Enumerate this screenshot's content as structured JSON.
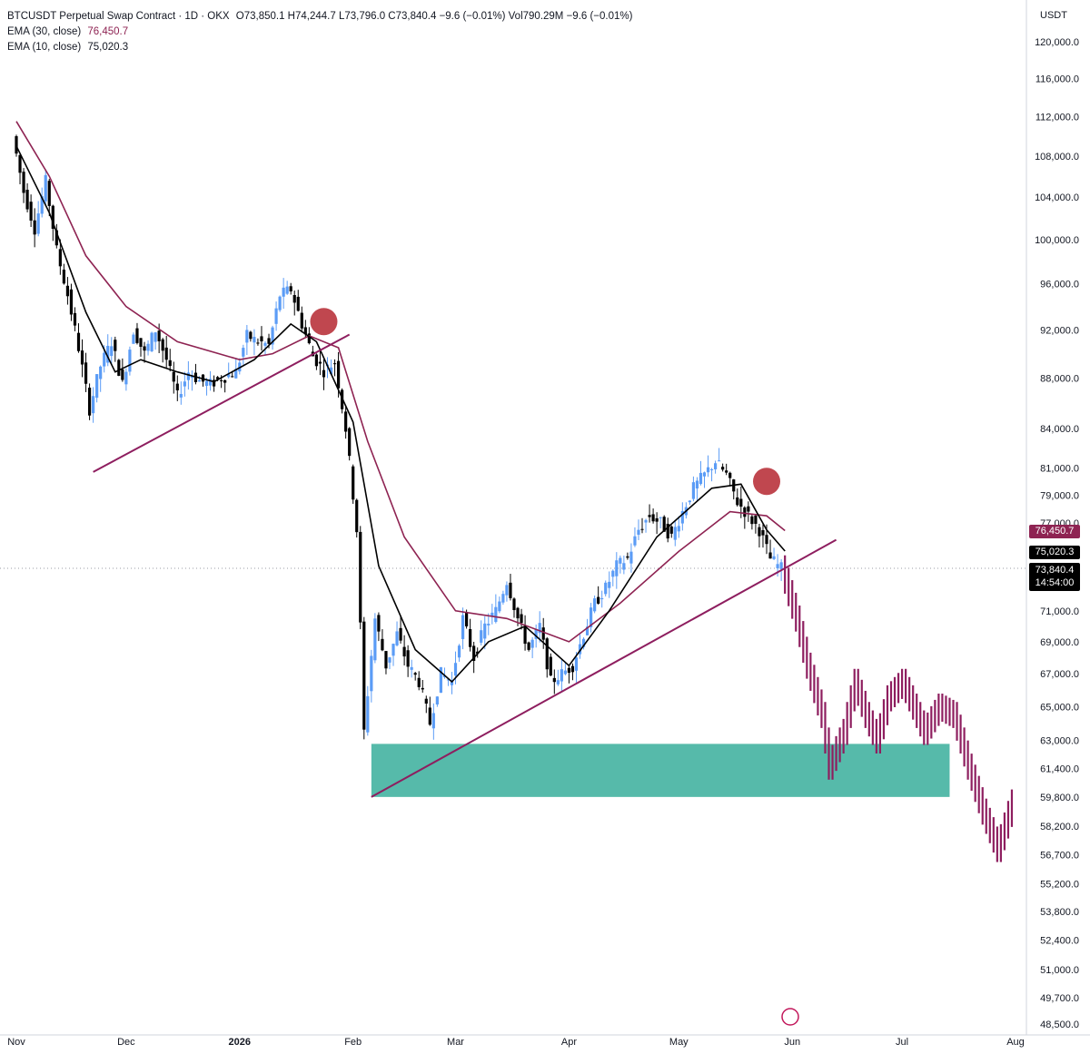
{
  "header": {
    "symbol": "BTCUSDT Perpetual Swap Contract · 1D · OKX",
    "ohlc": "O73,850.1  H74,244.7  L73,796.0  C73,840.4  −9.6 (−0.01%)  Vol790.29M  −9.6 (−0.01%)",
    "ema30_label": "EMA (30, close)",
    "ema30_value": "76,450.7",
    "ema10_label": "EMA (10, close)",
    "ema10_value": "75,020.3",
    "currency": "USDT"
  },
  "tags": {
    "ema30": "76,450.7",
    "ema10": "75,020.3",
    "last": "73,840.4",
    "countdown": "14:54:00"
  },
  "colors": {
    "up": "#5b9cf6",
    "down": "#000000",
    "ema30": "#8e2352",
    "ema10": "#000000",
    "projection": "#8e1e5f",
    "zone": "#4db6a5",
    "trendline": "#8e1e5f",
    "marker": "#c0474f"
  },
  "chart_data": {
    "type": "candlestick",
    "price_axis_ticks": [
      "120,000.0",
      "116,000.0",
      "112,000.0",
      "108,000.0",
      "104,000.0",
      "100,000.0",
      "96,000.0",
      "92,000.0",
      "88,000.0",
      "84,000.0",
      "81,000.0",
      "79,000.0",
      "77,000.0",
      "71,000.0",
      "69,000.0",
      "67,000.0",
      "65,000.0",
      "63,000.0",
      "61,400.0",
      "59,800.0",
      "58,200.0",
      "56,700.0",
      "55,200.0",
      "53,800.0",
      "52,400.0",
      "51,000.0",
      "49,700.0",
      "48,500.0"
    ],
    "time_axis_ticks": [
      "Nov",
      "Dec",
      "2026",
      "Feb",
      "Mar",
      "Apr",
      "May",
      "Jun",
      "Jul",
      "Aug"
    ],
    "date_range": [
      "2025-11-01",
      "2026-08-01"
    ],
    "price_range": [
      48500,
      120000
    ],
    "scale": "log",
    "candles_close_approx": [
      [
        "2025-11-01",
        110000
      ],
      [
        "2025-11-04",
        104500
      ],
      [
        "2025-11-07",
        101000
      ],
      [
        "2025-11-10",
        105500
      ],
      [
        "2025-11-13",
        99000
      ],
      [
        "2025-11-16",
        95000
      ],
      [
        "2025-11-19",
        90500
      ],
      [
        "2025-11-22",
        85500
      ],
      [
        "2025-11-25",
        89000
      ],
      [
        "2025-11-28",
        91000
      ],
      [
        "2025-12-01",
        87500
      ],
      [
        "2025-12-04",
        92000
      ],
      [
        "2025-12-07",
        90000
      ],
      [
        "2025-12-10",
        92000
      ],
      [
        "2025-12-13",
        89500
      ],
      [
        "2025-12-16",
        86500
      ],
      [
        "2025-12-19",
        88500
      ],
      [
        "2025-12-22",
        87800
      ],
      [
        "2025-12-25",
        87500
      ],
      [
        "2025-12-28",
        88000
      ],
      [
        "2026-01-01",
        88500
      ],
      [
        "2026-01-04",
        91500
      ],
      [
        "2026-01-07",
        91000
      ],
      [
        "2026-01-10",
        90700
      ],
      [
        "2026-01-13",
        95000
      ],
      [
        "2026-01-16",
        95500
      ],
      [
        "2026-01-19",
        92500
      ],
      [
        "2026-01-22",
        89800
      ],
      [
        "2026-01-25",
        88600
      ],
      [
        "2026-01-28",
        89300
      ],
      [
        "2026-01-31",
        84000
      ],
      [
        "2026-02-03",
        76500
      ],
      [
        "2026-02-05",
        63500
      ],
      [
        "2026-02-08",
        70500
      ],
      [
        "2026-02-11",
        67500
      ],
      [
        "2026-02-14",
        69500
      ],
      [
        "2026-02-17",
        67500
      ],
      [
        "2026-02-20",
        66500
      ],
      [
        "2026-02-23",
        64000
      ],
      [
        "2026-02-26",
        67000
      ],
      [
        "2026-03-01",
        66500
      ],
      [
        "2026-03-04",
        70500
      ],
      [
        "2026-03-07",
        68000
      ],
      [
        "2026-03-10",
        70000
      ],
      [
        "2026-03-13",
        71000
      ],
      [
        "2026-03-16",
        73000
      ],
      [
        "2026-03-19",
        70500
      ],
      [
        "2026-03-22",
        68500
      ],
      [
        "2026-03-25",
        70000
      ],
      [
        "2026-03-28",
        66500
      ],
      [
        "2026-03-31",
        67000
      ],
      [
        "2026-04-03",
        67500
      ],
      [
        "2026-04-06",
        69500
      ],
      [
        "2026-04-09",
        71500
      ],
      [
        "2026-04-12",
        72500
      ],
      [
        "2026-04-15",
        74000
      ],
      [
        "2026-04-18",
        74500
      ],
      [
        "2026-04-21",
        76500
      ],
      [
        "2026-04-24",
        77500
      ],
      [
        "2026-04-27",
        77000
      ],
      [
        "2026-04-30",
        76000
      ],
      [
        "2026-05-03",
        77800
      ],
      [
        "2026-05-06",
        79500
      ],
      [
        "2026-05-09",
        80500
      ],
      [
        "2026-05-12",
        81500
      ],
      [
        "2026-05-15",
        80500
      ],
      [
        "2026-05-18",
        78500
      ],
      [
        "2026-05-21",
        77500
      ],
      [
        "2026-05-24",
        76500
      ],
      [
        "2026-05-27",
        74500
      ],
      [
        "2026-05-30",
        73840
      ]
    ],
    "projection_path_approx": [
      [
        "2026-05-30",
        73840
      ],
      [
        "2026-06-03",
        70500
      ],
      [
        "2026-06-06",
        67500
      ],
      [
        "2026-06-10",
        64500
      ],
      [
        "2026-06-12",
        61500
      ],
      [
        "2026-06-16",
        63500
      ],
      [
        "2026-06-19",
        66500
      ],
      [
        "2026-06-22",
        64500
      ],
      [
        "2026-06-25",
        63000
      ],
      [
        "2026-06-28",
        65500
      ],
      [
        "2026-07-02",
        66500
      ],
      [
        "2026-07-05",
        65000
      ],
      [
        "2026-07-08",
        63500
      ],
      [
        "2026-07-12",
        65000
      ],
      [
        "2026-07-16",
        64500
      ],
      [
        "2026-07-20",
        61500
      ],
      [
        "2026-07-24",
        59000
      ],
      [
        "2026-07-28",
        57000
      ],
      [
        "2026-08-01",
        59500
      ]
    ],
    "ema30_approx": [
      [
        "2025-11-01",
        111500
      ],
      [
        "2025-11-10",
        106000
      ],
      [
        "2025-11-20",
        98500
      ],
      [
        "2025-12-01",
        94000
      ],
      [
        "2025-12-15",
        91000
      ],
      [
        "2026-01-01",
        89500
      ],
      [
        "2026-01-10",
        90000
      ],
      [
        "2026-01-20",
        91500
      ],
      [
        "2026-01-28",
        90500
      ],
      [
        "2026-02-05",
        83000
      ],
      [
        "2026-02-15",
        76000
      ],
      [
        "2026-03-01",
        71000
      ],
      [
        "2026-03-15",
        70500
      ],
      [
        "2026-04-01",
        69000
      ],
      [
        "2026-04-15",
        71500
      ],
      [
        "2026-05-01",
        75000
      ],
      [
        "2026-05-15",
        77800
      ],
      [
        "2026-05-25",
        77500
      ],
      [
        "2026-05-30",
        76450
      ]
    ],
    "ema10_approx": [
      [
        "2025-11-01",
        109000
      ],
      [
        "2025-11-10",
        102500
      ],
      [
        "2025-11-20",
        93500
      ],
      [
        "2025-11-28",
        88500
      ],
      [
        "2025-12-05",
        89500
      ],
      [
        "2025-12-15",
        88500
      ],
      [
        "2025-12-25",
        87700
      ],
      [
        "2026-01-05",
        89500
      ],
      [
        "2026-01-15",
        92500
      ],
      [
        "2026-01-22",
        91000
      ],
      [
        "2026-02-01",
        84500
      ],
      [
        "2026-02-08",
        74000
      ],
      [
        "2026-02-18",
        68500
      ],
      [
        "2026-02-28",
        66500
      ],
      [
        "2026-03-10",
        69000
      ],
      [
        "2026-03-20",
        70000
      ],
      [
        "2026-04-01",
        67500
      ],
      [
        "2026-04-12",
        71000
      ],
      [
        "2026-04-25",
        76000
      ],
      [
        "2026-05-10",
        79500
      ],
      [
        "2026-05-18",
        79800
      ],
      [
        "2026-05-25",
        76500
      ],
      [
        "2026-05-30",
        75020
      ]
    ],
    "support_zone": {
      "from": "2026-02-06",
      "to": "2026-07-14",
      "low": 59800,
      "high": 62800
    },
    "trendlines": [
      {
        "from": [
          "2025-11-22",
          80700
        ],
        "to": [
          "2026-01-31",
          91600
        ]
      },
      {
        "from": [
          "2026-02-06",
          59800
        ],
        "to": [
          "2026-06-13",
          75800
        ]
      }
    ],
    "markers": [
      {
        "date": "2026-01-24",
        "price": 92700
      },
      {
        "date": "2026-05-25",
        "price": 80000
      }
    ]
  }
}
